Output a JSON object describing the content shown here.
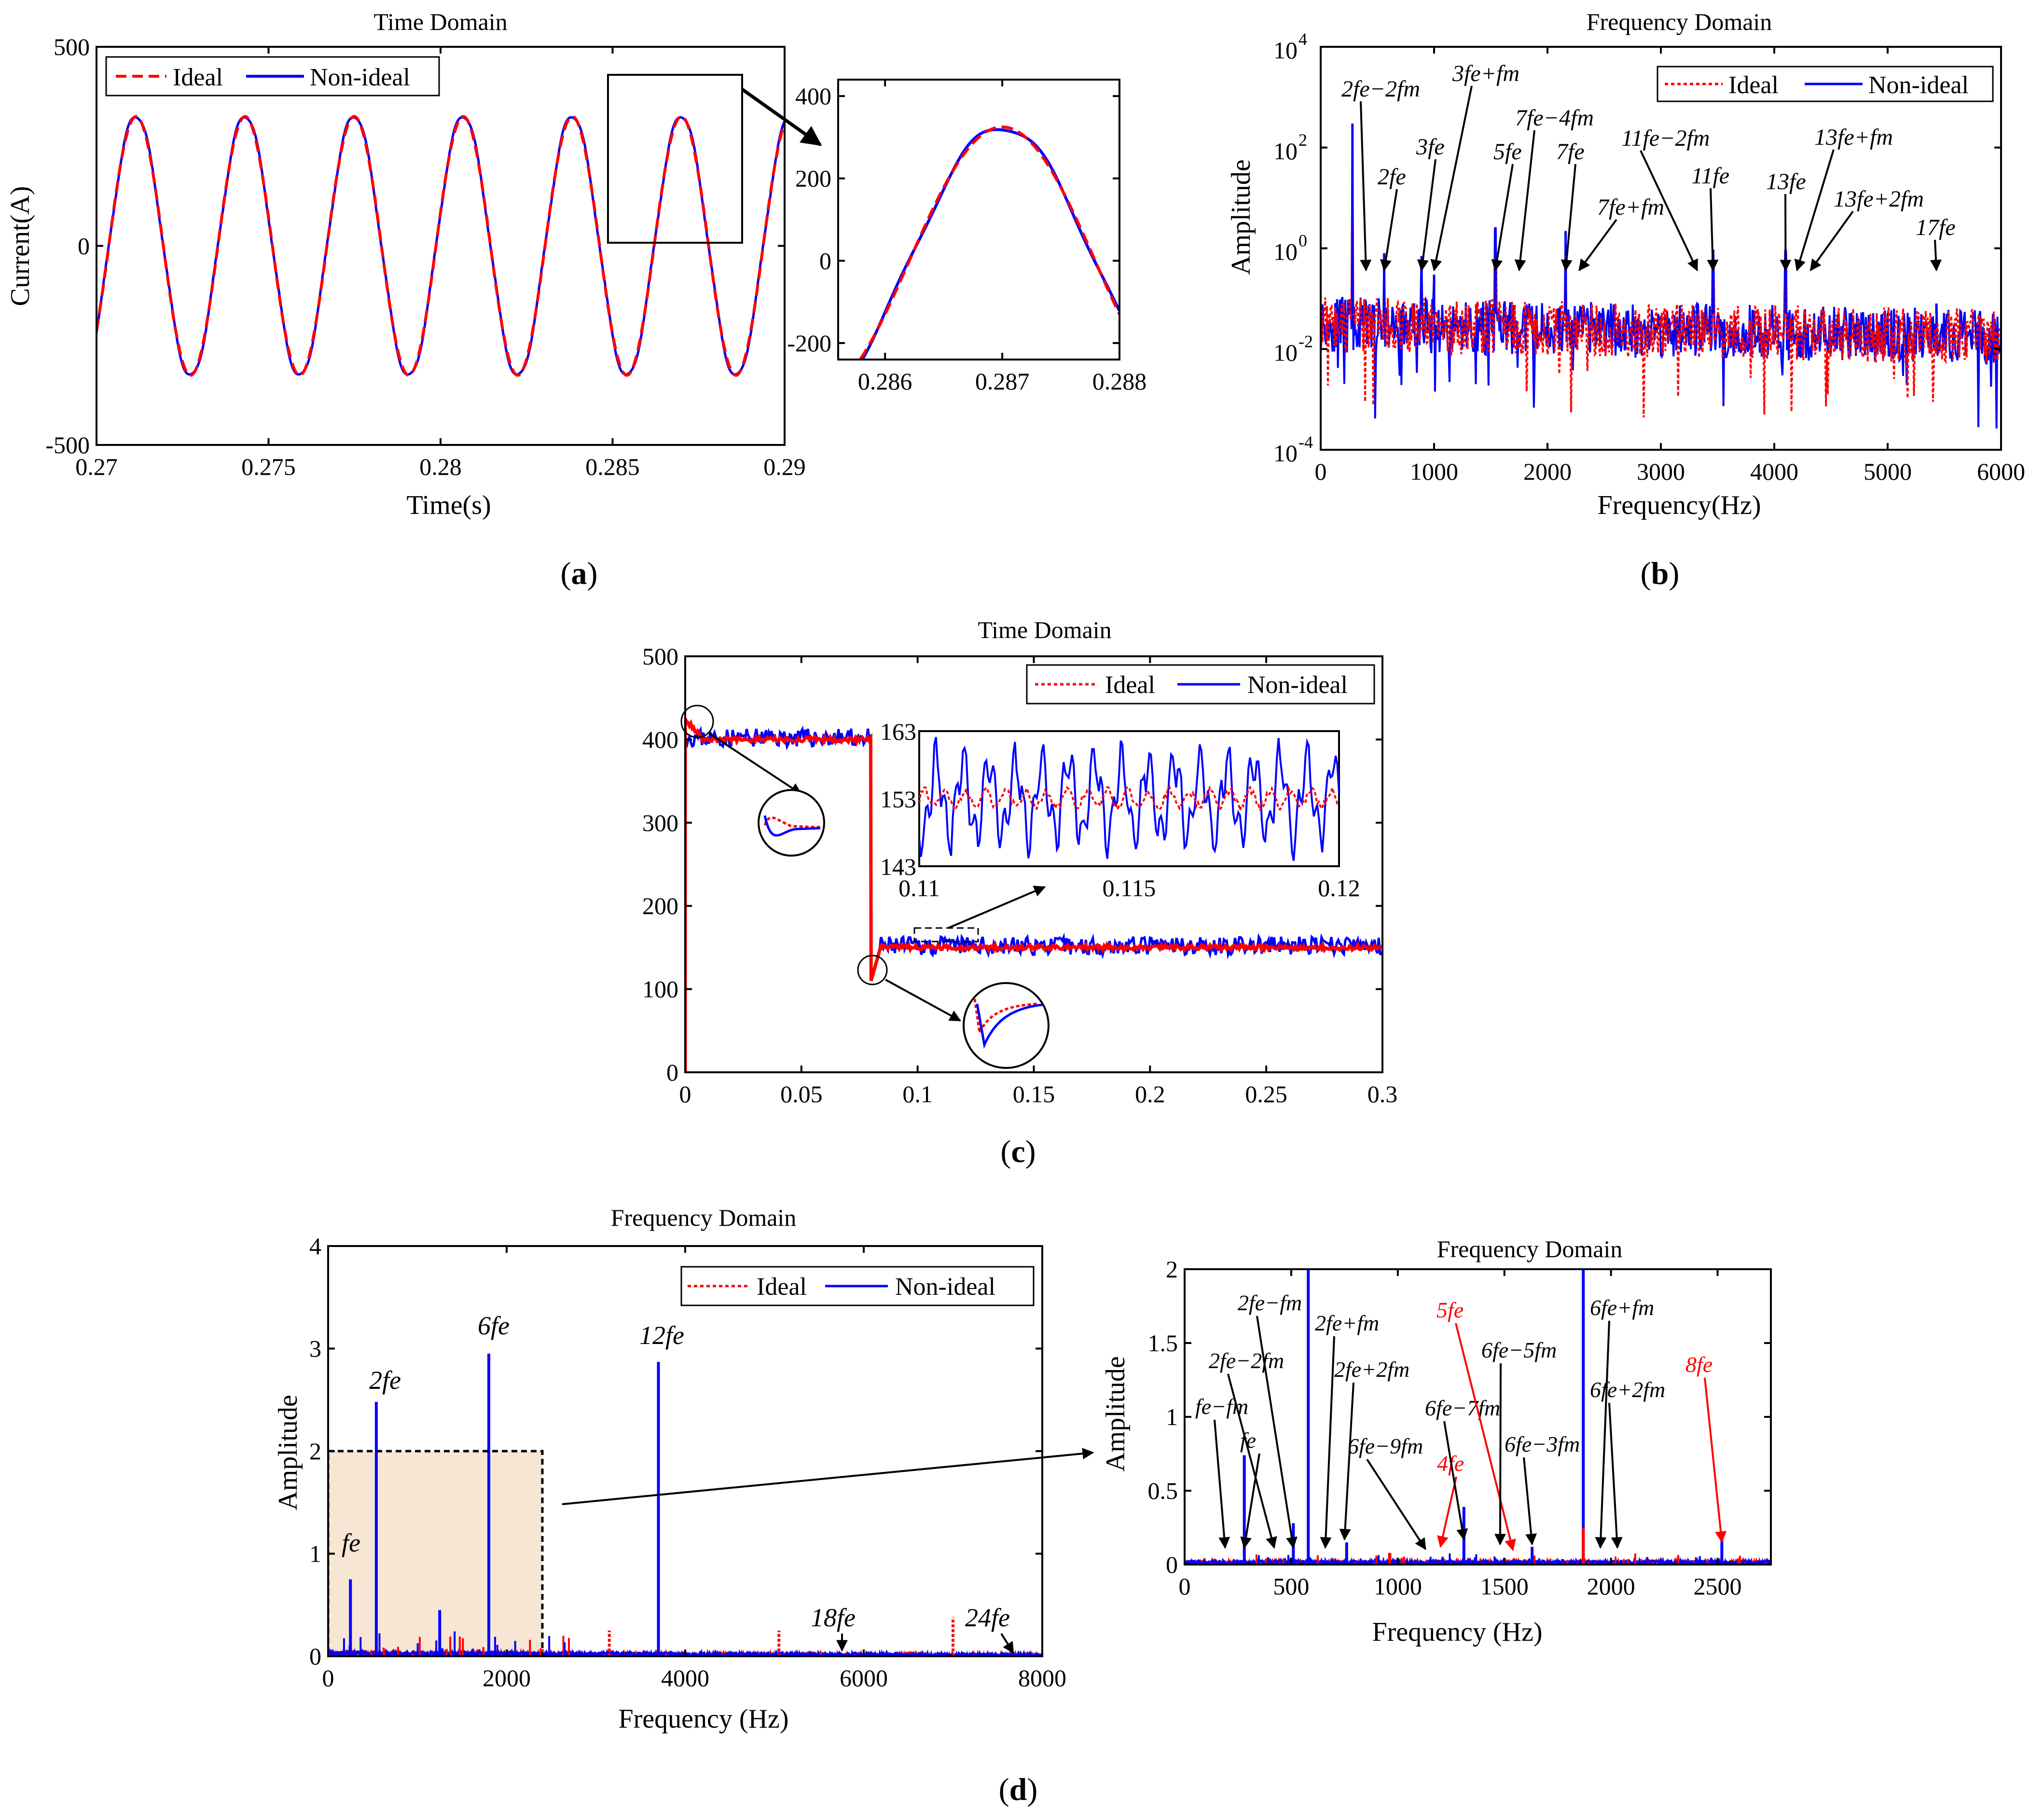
{
  "colors": {
    "ideal": "#ff0000",
    "nonideal": "#0000ff",
    "zoom_fill": "#f7e6d4",
    "annotation_red": "#ff0000"
  },
  "panel_labels": {
    "a": {
      "open": "(",
      "letter": "a",
      "close": ")"
    },
    "b": {
      "open": "(",
      "letter": "b",
      "close": ")"
    },
    "c": {
      "open": "(",
      "letter": "c",
      "close": ")"
    },
    "d": {
      "open": "(",
      "letter": "d",
      "close": ")"
    }
  },
  "chart_data": [
    {
      "id": "a-main",
      "type": "line",
      "title": "Time Domain",
      "xlabel": "Time(s)",
      "ylabel": "Current(A)",
      "xlim": [
        0.27,
        0.29
      ],
      "ylim": [
        -500,
        500
      ],
      "x_ticks": [
        0.27,
        0.275,
        0.28,
        0.285,
        0.29
      ],
      "x_tick_labels": [
        "0.27",
        "0.275",
        "0.28",
        "0.285",
        "0.29"
      ],
      "y_ticks": [
        -500,
        0,
        500
      ],
      "y_tick_labels": [
        "-500",
        "0",
        "500"
      ],
      "legend": [
        "Ideal",
        "Non-ideal"
      ],
      "series": [
        {
          "name": "Ideal",
          "style": "dashed",
          "waveform": "sine",
          "amplitude": 325,
          "period": 0.00317,
          "peak_at": 0.287
        },
        {
          "name": "Non-ideal",
          "style": "solid",
          "waveform": "sine",
          "amplitude": 328,
          "period": 0.00317,
          "peak_at": 0.287
        }
      ]
    },
    {
      "id": "a-zoom",
      "type": "line",
      "xlim": [
        0.2856,
        0.288
      ],
      "ylim": [
        -240,
        440
      ],
      "x_ticks": [
        0.286,
        0.287,
        0.288
      ],
      "x_tick_labels": [
        "0.286",
        "0.287",
        "0.288"
      ],
      "y_ticks": [
        -200,
        0,
        200,
        400
      ],
      "y_tick_labels": [
        "-200",
        "0",
        "200",
        "400"
      ]
    },
    {
      "id": "b",
      "type": "line",
      "title": "Frequency Domain",
      "xlabel": "Frequency(Hz)",
      "ylabel": "Amplitude",
      "yscale": "log",
      "xlim": [
        0,
        6000
      ],
      "ylim_exp": [
        -4,
        4
      ],
      "x_ticks": [
        0,
        1000,
        2000,
        3000,
        4000,
        5000,
        6000
      ],
      "x_tick_labels": [
        "0",
        "1000",
        "2000",
        "3000",
        "4000",
        "5000",
        "6000"
      ],
      "y_tick_exponents": [
        -4,
        -2,
        0,
        2,
        4
      ],
      "y_tick_base": "10",
      "y_tick_exps_text": [
        "-4",
        "-2",
        "0",
        "2",
        "4"
      ],
      "legend": [
        "Ideal",
        "Non-ideal"
      ],
      "peaks": [
        {
          "f": 280,
          "amp": 300
        },
        {
          "f": 560,
          "amp": 0.8
        },
        {
          "f": 890,
          "amp": 0.7
        },
        {
          "f": 1000,
          "amp": 0.3
        },
        {
          "f": 1540,
          "amp": 2.5
        },
        {
          "f": 2160,
          "amp": 2.2
        },
        {
          "f": 3320,
          "amp": 0.08
        },
        {
          "f": 3460,
          "amp": 0.9
        },
        {
          "f": 4100,
          "amp": 0.9
        },
        {
          "f": 5430,
          "amp": 0.08
        }
      ],
      "annotations": [
        {
          "label": "2fe−2fm",
          "f": 400
        },
        {
          "label": "2fe",
          "f": 560
        },
        {
          "label": "3fe",
          "f": 890
        },
        {
          "label": "3fe+fm",
          "f": 1000
        },
        {
          "label": "5fe",
          "f": 1540
        },
        {
          "label": "7fe−4fm",
          "f": 1750
        },
        {
          "label": "7fe",
          "f": 2160
        },
        {
          "label": "7fe+fm",
          "f": 2280
        },
        {
          "label": "11fe−2fm",
          "f": 3320
        },
        {
          "label": "11fe",
          "f": 3460
        },
        {
          "label": "13fe",
          "f": 4100
        },
        {
          "label": "13fe+fm",
          "f": 4200
        },
        {
          "label": "13fe+2fm",
          "f": 4320
        },
        {
          "label": "17fe",
          "f": 5430
        }
      ]
    },
    {
      "id": "c-main",
      "type": "line",
      "title": "Time Domain",
      "xlim": [
        0,
        0.3
      ],
      "ylim": [
        0,
        500
      ],
      "x_ticks": [
        0,
        0.05,
        0.1,
        0.15,
        0.2,
        0.25,
        0.3
      ],
      "x_tick_labels": [
        "0",
        "0.05",
        "0.1",
        "0.15",
        "0.2",
        "0.25",
        "0.3"
      ],
      "y_ticks": [
        0,
        100,
        200,
        300,
        400,
        500
      ],
      "y_tick_labels": [
        "0",
        "100",
        "200",
        "300",
        "400",
        "500"
      ],
      "legend": [
        "Ideal",
        "Non-ideal"
      ],
      "series": [
        {
          "name": "Ideal",
          "segments": [
            {
              "t0": 0,
              "t1": 0.08,
              "level": 400
            },
            {
              "t0": 0.08,
              "t1": 0.3,
              "level": 150
            }
          ]
        },
        {
          "name": "Non-ideal",
          "segments": [
            {
              "t0": 0,
              "t1": 0.08,
              "level": 402
            },
            {
              "t0": 0.08,
              "t1": 0.3,
              "level": 152
            }
          ]
        }
      ]
    },
    {
      "id": "c-zoom",
      "type": "line",
      "xlim": [
        0.11,
        0.12
      ],
      "ylim": [
        143,
        163
      ],
      "x_ticks": [
        0.11,
        0.115,
        0.12
      ],
      "x_tick_labels": [
        "0.11",
        "0.115",
        "0.12"
      ],
      "y_ticks": [
        143,
        153,
        163
      ],
      "y_tick_labels": [
        "143",
        "153",
        "163"
      ]
    },
    {
      "id": "d-main",
      "type": "line",
      "title": "Frequency Domain",
      "xlabel": "Frequency (Hz)",
      "ylabel": "Amplitude",
      "xlim": [
        0,
        8000
      ],
      "ylim": [
        0,
        4
      ],
      "x_ticks": [
        0,
        2000,
        4000,
        6000,
        8000
      ],
      "x_tick_labels": [
        "0",
        "2000",
        "4000",
        "6000",
        "8000"
      ],
      "y_ticks": [
        0,
        1,
        2,
        3,
        4
      ],
      "y_tick_labels": [
        "0",
        "1",
        "2",
        "3",
        "4"
      ],
      "legend": [
        "Ideal",
        "Non-ideal"
      ],
      "peaks": [
        {
          "f": 250,
          "amp": 0.75,
          "series": "Non-ideal"
        },
        {
          "f": 540,
          "amp": 2.48,
          "series": "Non-ideal"
        },
        {
          "f": 1800,
          "amp": 2.95,
          "series": "Non-ideal"
        },
        {
          "f": 3700,
          "amp": 2.87,
          "series": "Non-ideal"
        },
        {
          "f": 1250,
          "amp": 0.45,
          "series": "Non-ideal"
        },
        {
          "f": 3150,
          "amp": 0.25,
          "series": "Ideal"
        },
        {
          "f": 5050,
          "amp": 0.25,
          "series": "Ideal"
        },
        {
          "f": 7000,
          "amp": 0.38,
          "series": "Ideal"
        }
      ],
      "annotations": [
        {
          "label": "fe",
          "f": 250
        },
        {
          "label": "2fe",
          "f": 540
        },
        {
          "label": "6fe",
          "f": 1800
        },
        {
          "label": "12fe",
          "f": 3700
        },
        {
          "label": "18fe",
          "f": 5650
        },
        {
          "label": "24fe",
          "f": 7600
        }
      ],
      "zoom_region": {
        "x0": 0,
        "x1": 2400,
        "y0": 0,
        "y1": 2
      }
    },
    {
      "id": "d-zoom",
      "type": "line",
      "title": "Frequency Domain",
      "xlabel": "Frequency (Hz)",
      "ylabel": "Amplitude",
      "xlim": [
        0,
        2750
      ],
      "ylim": [
        0,
        2
      ],
      "x_ticks": [
        0,
        500,
        1000,
        1500,
        2000,
        2500
      ],
      "x_tick_labels": [
        "0",
        "500",
        "1000",
        "1500",
        "2000",
        "2500"
      ],
      "y_ticks": [
        0,
        0.5,
        1,
        1.5,
        2
      ],
      "y_tick_labels": [
        "0",
        "0.5",
        "1",
        "1.5",
        "2"
      ],
      "peaks": [
        {
          "f": 280,
          "amp": 0.74,
          "series": "Non-ideal"
        },
        {
          "f": 510,
          "amp": 0.28,
          "series": "Non-ideal"
        },
        {
          "f": 580,
          "amp": 2.0,
          "series": "Non-ideal"
        },
        {
          "f": 760,
          "amp": 0.15,
          "series": "Non-ideal"
        },
        {
          "f": 1310,
          "amp": 0.39,
          "series": "Non-ideal"
        },
        {
          "f": 1630,
          "amp": 0.12,
          "series": "Non-ideal"
        },
        {
          "f": 1870,
          "amp": 2.0,
          "series": "Non-ideal"
        },
        {
          "f": 2520,
          "amp": 0.18,
          "series": "Non-ideal"
        },
        {
          "f": 1870,
          "amp": 0.25,
          "series": "Ideal"
        }
      ],
      "annotations": [
        {
          "label": "fe−fm",
          "f": 190,
          "color": "black"
        },
        {
          "label": "fe",
          "f": 280,
          "color": "black"
        },
        {
          "label": "2fe−2fm",
          "f": 420,
          "color": "black"
        },
        {
          "label": "2fe−fm",
          "f": 510,
          "color": "black"
        },
        {
          "label": "2fe+fm",
          "f": 660,
          "color": "black"
        },
        {
          "label": "2fe+2fm",
          "f": 750,
          "color": "black"
        },
        {
          "label": "6fe−9fm",
          "f": 1130,
          "color": "black"
        },
        {
          "label": "4fe",
          "f": 1200,
          "color": "red"
        },
        {
          "label": "6fe−7fm",
          "f": 1310,
          "color": "black"
        },
        {
          "label": "5fe",
          "f": 1540,
          "color": "red"
        },
        {
          "label": "6fe−5fm",
          "f": 1480,
          "color": "black"
        },
        {
          "label": "6fe−3fm",
          "f": 1630,
          "color": "black"
        },
        {
          "label": "6fe+fm",
          "f": 1950,
          "color": "black"
        },
        {
          "label": "6fe+2fm",
          "f": 2030,
          "color": "black"
        },
        {
          "label": "8fe",
          "f": 2520,
          "color": "red"
        }
      ]
    }
  ]
}
